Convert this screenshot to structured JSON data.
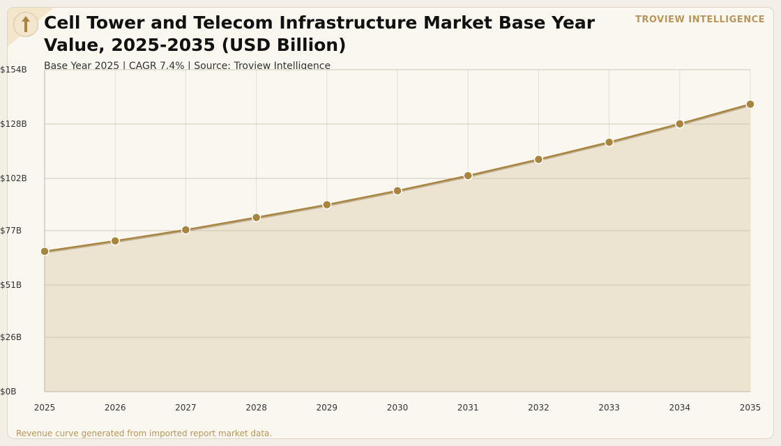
{
  "header": {
    "title": "Cell Tower and Telecom Infrastructure Market Base Year Value, 2025-2035 (USD Billion)",
    "subtitle": "Base Year 2025 | CAGR 7.4% | Source: Troview Intelligence",
    "brand": "TROVIEW INTELLIGENCE",
    "logo_icon": "upward-arrow-icon"
  },
  "footer": {
    "note": "Revenue curve generated from imported report market data."
  },
  "colors": {
    "line": "#a8843f",
    "marker": "#a8843f",
    "area": "#ede3d1",
    "grid_h": "#cfc6b6",
    "grid_v": "#e3ddd2",
    "accent": "#b8955a"
  },
  "chart_data": {
    "type": "area",
    "title": "Cell Tower and Telecom Infrastructure Market Base Year Value, 2025-2035 (USD Billion)",
    "xlabel": "",
    "ylabel": "",
    "x": [
      "2025",
      "2026",
      "2027",
      "2028",
      "2029",
      "2030",
      "2031",
      "2032",
      "2033",
      "2034",
      "2035"
    ],
    "values": [
      67.1,
      72.1,
      77.4,
      83.3,
      89.4,
      96.1,
      103.3,
      111.1,
      119.3,
      128.1,
      137.5
    ],
    "ylim": [
      0,
      154
    ],
    "yticks": [
      0,
      26,
      51,
      77,
      102,
      128,
      154
    ],
    "ytick_labels": [
      "$0B",
      "$26B",
      "$51B",
      "$77B",
      "$102B",
      "$128B",
      "$154B"
    ],
    "grid": true,
    "markers": true,
    "legend": "none"
  }
}
